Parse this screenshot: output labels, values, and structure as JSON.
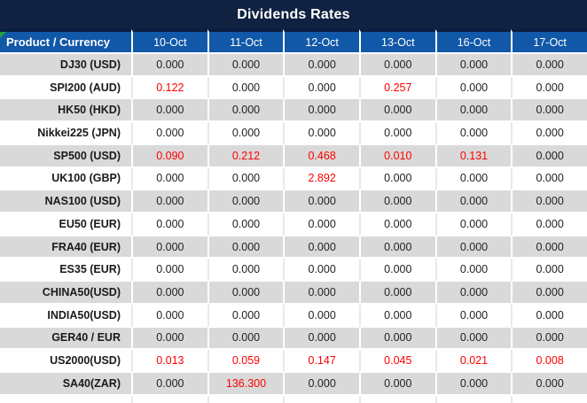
{
  "title": "Dividends Rates",
  "colors": {
    "title_navy": "#102142",
    "header_blue": "#1158a8",
    "row_gray": "#d9d9d9",
    "row_white": "#ffffff",
    "value_red": "#fe0000",
    "text_dark": "#1f1f1f",
    "indicator_green": "#21a038"
  },
  "table": {
    "corner_label": "Product / Currency",
    "date_headers": [
      "10-Oct",
      "11-Oct",
      "12-Oct",
      "13-Oct",
      "16-Oct",
      "17-Oct"
    ],
    "rows": [
      {
        "product": "DJ30 (USD)",
        "values": [
          {
            "text": "0.000",
            "highlight": false
          },
          {
            "text": "0.000",
            "highlight": false
          },
          {
            "text": "0.000",
            "highlight": false
          },
          {
            "text": "0.000",
            "highlight": false
          },
          {
            "text": "0.000",
            "highlight": false
          },
          {
            "text": "0.000",
            "highlight": false
          }
        ]
      },
      {
        "product": "SPI200 (AUD)",
        "values": [
          {
            "text": "0.122",
            "highlight": true
          },
          {
            "text": "0.000",
            "highlight": false
          },
          {
            "text": "0.000",
            "highlight": false
          },
          {
            "text": "0.257",
            "highlight": true
          },
          {
            "text": "0.000",
            "highlight": false
          },
          {
            "text": "0.000",
            "highlight": false
          }
        ]
      },
      {
        "product": "HK50 (HKD)",
        "values": [
          {
            "text": "0.000",
            "highlight": false
          },
          {
            "text": "0.000",
            "highlight": false
          },
          {
            "text": "0.000",
            "highlight": false
          },
          {
            "text": "0.000",
            "highlight": false
          },
          {
            "text": "0.000",
            "highlight": false
          },
          {
            "text": "0.000",
            "highlight": false
          }
        ]
      },
      {
        "product": "Nikkei225 (JPN)",
        "values": [
          {
            "text": "0.000",
            "highlight": false
          },
          {
            "text": "0.000",
            "highlight": false
          },
          {
            "text": "0.000",
            "highlight": false
          },
          {
            "text": "0.000",
            "highlight": false
          },
          {
            "text": "0.000",
            "highlight": false
          },
          {
            "text": "0.000",
            "highlight": false
          }
        ]
      },
      {
        "product": "SP500 (USD)",
        "values": [
          {
            "text": "0.090",
            "highlight": true
          },
          {
            "text": "0.212",
            "highlight": true
          },
          {
            "text": "0.468",
            "highlight": true
          },
          {
            "text": "0.010",
            "highlight": true
          },
          {
            "text": "0.131",
            "highlight": true
          },
          {
            "text": "0.000",
            "highlight": false
          }
        ]
      },
      {
        "product": "UK100 (GBP)",
        "values": [
          {
            "text": "0.000",
            "highlight": false
          },
          {
            "text": "0.000",
            "highlight": false
          },
          {
            "text": "2.892",
            "highlight": true
          },
          {
            "text": "0.000",
            "highlight": false
          },
          {
            "text": "0.000",
            "highlight": false
          },
          {
            "text": "0.000",
            "highlight": false
          }
        ]
      },
      {
        "product": "NAS100 (USD)",
        "values": [
          {
            "text": "0.000",
            "highlight": false
          },
          {
            "text": "0.000",
            "highlight": false
          },
          {
            "text": "0.000",
            "highlight": false
          },
          {
            "text": "0.000",
            "highlight": false
          },
          {
            "text": "0.000",
            "highlight": false
          },
          {
            "text": "0.000",
            "highlight": false
          }
        ]
      },
      {
        "product": "EU50 (EUR)",
        "values": [
          {
            "text": "0.000",
            "highlight": false
          },
          {
            "text": "0.000",
            "highlight": false
          },
          {
            "text": "0.000",
            "highlight": false
          },
          {
            "text": "0.000",
            "highlight": false
          },
          {
            "text": "0.000",
            "highlight": false
          },
          {
            "text": "0.000",
            "highlight": false
          }
        ]
      },
      {
        "product": "FRA40 (EUR)",
        "values": [
          {
            "text": "0.000",
            "highlight": false
          },
          {
            "text": "0.000",
            "highlight": false
          },
          {
            "text": "0.000",
            "highlight": false
          },
          {
            "text": "0.000",
            "highlight": false
          },
          {
            "text": "0.000",
            "highlight": false
          },
          {
            "text": "0.000",
            "highlight": false
          }
        ]
      },
      {
        "product": "ES35 (EUR)",
        "values": [
          {
            "text": "0.000",
            "highlight": false
          },
          {
            "text": "0.000",
            "highlight": false
          },
          {
            "text": "0.000",
            "highlight": false
          },
          {
            "text": "0.000",
            "highlight": false
          },
          {
            "text": "0.000",
            "highlight": false
          },
          {
            "text": "0.000",
            "highlight": false
          }
        ]
      },
      {
        "product": "CHINA50(USD)",
        "values": [
          {
            "text": "0.000",
            "highlight": false
          },
          {
            "text": "0.000",
            "highlight": false
          },
          {
            "text": "0.000",
            "highlight": false
          },
          {
            "text": "0.000",
            "highlight": false
          },
          {
            "text": "0.000",
            "highlight": false
          },
          {
            "text": "0.000",
            "highlight": false
          }
        ]
      },
      {
        "product": "INDIA50(USD)",
        "values": [
          {
            "text": "0.000",
            "highlight": false
          },
          {
            "text": "0.000",
            "highlight": false
          },
          {
            "text": "0.000",
            "highlight": false
          },
          {
            "text": "0.000",
            "highlight": false
          },
          {
            "text": "0.000",
            "highlight": false
          },
          {
            "text": "0.000",
            "highlight": false
          }
        ]
      },
      {
        "product": "GER40 / EUR",
        "values": [
          {
            "text": "0.000",
            "highlight": false
          },
          {
            "text": "0.000",
            "highlight": false
          },
          {
            "text": "0.000",
            "highlight": false
          },
          {
            "text": "0.000",
            "highlight": false
          },
          {
            "text": "0.000",
            "highlight": false
          },
          {
            "text": "0.000",
            "highlight": false
          }
        ]
      },
      {
        "product": "US2000(USD)",
        "values": [
          {
            "text": "0.013",
            "highlight": true
          },
          {
            "text": "0.059",
            "highlight": true
          },
          {
            "text": "0.147",
            "highlight": true
          },
          {
            "text": "0.045",
            "highlight": true
          },
          {
            "text": "0.021",
            "highlight": true
          },
          {
            "text": "0.008",
            "highlight": true
          }
        ]
      },
      {
        "product": "SA40(ZAR)",
        "values": [
          {
            "text": "0.000",
            "highlight": false
          },
          {
            "text": "136.300",
            "highlight": true
          },
          {
            "text": "0.000",
            "highlight": false
          },
          {
            "text": "0.000",
            "highlight": false
          },
          {
            "text": "0.000",
            "highlight": false
          },
          {
            "text": "0.000",
            "highlight": false
          }
        ]
      }
    ]
  }
}
